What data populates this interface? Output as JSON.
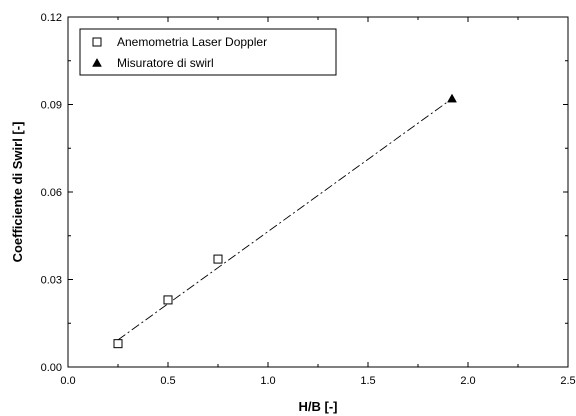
{
  "chart_data": {
    "type": "scatter",
    "xlabel": "H/B [-]",
    "ylabel": "Coefficiente di Swirl [-]",
    "xlim": [
      0.0,
      2.5
    ],
    "ylim": [
      0.0,
      0.12
    ],
    "x_ticks": [
      "0.0",
      "0.5",
      "1.0",
      "1.5",
      "2.0",
      "2.5"
    ],
    "y_ticks": [
      "0.00",
      "0.03",
      "0.06",
      "0.09",
      "0.12"
    ],
    "grid": false,
    "legend_position": "top-left",
    "series": [
      {
        "name": "Anemometria Laser Doppler",
        "marker": "open-square",
        "points": [
          {
            "x": 0.25,
            "y": 0.008
          },
          {
            "x": 0.5,
            "y": 0.023
          },
          {
            "x": 0.75,
            "y": 0.037
          }
        ]
      },
      {
        "name": "Misuratore di swirl",
        "marker": "filled-triangle",
        "points": [
          {
            "x": 1.92,
            "y": 0.092
          }
        ]
      }
    ],
    "trend_line": {
      "style": "dash-dot",
      "from": {
        "x": 0.25,
        "y": 0.0093
      },
      "to": {
        "x": 1.92,
        "y": 0.092
      }
    }
  }
}
